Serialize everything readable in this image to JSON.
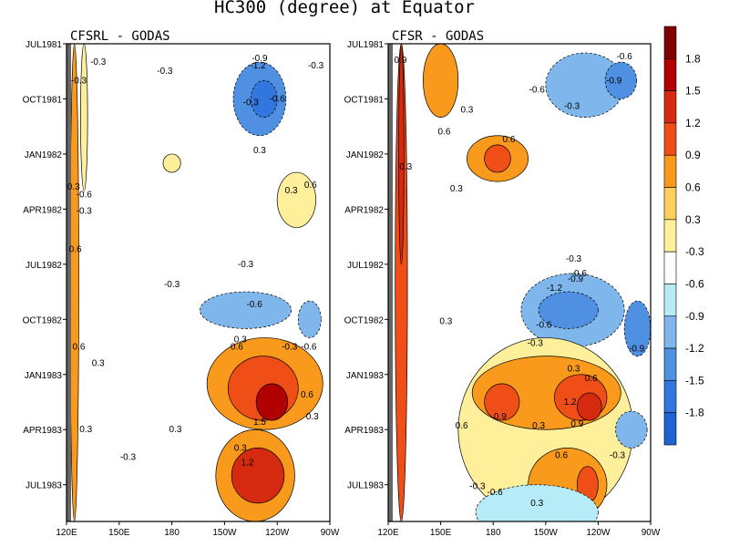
{
  "chart_data": {
    "type": "heatmap",
    "title": "HC300 (degree) at Equator",
    "panels": [
      {
        "title": "CFSRL - GODAS",
        "xlim": [
          120,
          270
        ],
        "y_start": "JUL1981",
        "y_end": "SEP1983",
        "regions": [
          {
            "lon": [
              122,
              127
            ],
            "t": [
              0,
              26
            ],
            "value": 0.6
          },
          {
            "lon": [
              128,
              132
            ],
            "t": [
              0,
              8
            ],
            "value": 0.4
          },
          {
            "lon": [
              215,
              245
            ],
            "t": [
              1,
              5
            ],
            "value": -0.9
          },
          {
            "lon": [
              225,
              240
            ],
            "t": [
              2,
              4
            ],
            "value": -1.2
          },
          {
            "lon": [
              175,
              185
            ],
            "t": [
              6,
              7
            ],
            "value": 0.3
          },
          {
            "lon": [
              240,
              262
            ],
            "t": [
              7,
              10
            ],
            "value": 0.3
          },
          {
            "lon": [
              196,
              248
            ],
            "t": [
              13.5,
              15.5
            ],
            "value": -0.6
          },
          {
            "lon": [
              252,
              265
            ],
            "t": [
              14,
              16
            ],
            "value": -0.6
          },
          {
            "lon": [
              200,
              266
            ],
            "t": [
              16,
              21
            ],
            "value": 0.6
          },
          {
            "lon": [
              212,
              252
            ],
            "t": [
              17,
              20.5
            ],
            "value": 0.9
          },
          {
            "lon": [
              228,
              246
            ],
            "t": [
              18.5,
              20.5
            ],
            "value": 1.5
          },
          {
            "lon": [
              205,
              250
            ],
            "t": [
              21,
              26
            ],
            "value": 0.6
          },
          {
            "lon": [
              214,
              244
            ],
            "t": [
              22,
              25
            ],
            "value": 1.2
          }
        ],
        "labels": [
          {
            "text": "-0.3",
            "lon": 138,
            "t": 1.0
          },
          {
            "text": "-0.3",
            "lon": 127,
            "t": 2.0
          },
          {
            "text": "-0.3",
            "lon": 176,
            "t": 1.5
          },
          {
            "text": "-0.9",
            "lon": 230,
            "t": 0.8
          },
          {
            "text": "-1.2",
            "lon": 229,
            "t": 1.2
          },
          {
            "text": "-0.3",
            "lon": 262,
            "t": 1.2
          },
          {
            "text": "-0.3",
            "lon": 225,
            "t": 3.2
          },
          {
            "text": "-0.6",
            "lon": 240,
            "t": 3.0
          },
          {
            "text": "0.3",
            "lon": 230,
            "t": 5.8
          },
          {
            "text": "0.3",
            "lon": 248,
            "t": 8.0
          },
          {
            "text": "0.6",
            "lon": 259,
            "t": 7.7
          },
          {
            "text": "0.3",
            "lon": 124,
            "t": 7.8
          },
          {
            "text": "-0.6",
            "lon": 130,
            "t": 8.2
          },
          {
            "text": "-0.3",
            "lon": 130,
            "t": 9.1
          },
          {
            "text": "0.6",
            "lon": 125,
            "t": 11.2
          },
          {
            "text": "-0.3",
            "lon": 222,
            "t": 12.0
          },
          {
            "text": "-0.3",
            "lon": 180,
            "t": 13.1
          },
          {
            "text": "-0.6",
            "lon": 227,
            "t": 14.2
          },
          {
            "text": "0.6",
            "lon": 127,
            "t": 16.5
          },
          {
            "text": "0.3",
            "lon": 138,
            "t": 17.4
          },
          {
            "text": "0.3",
            "lon": 219,
            "t": 16.1
          },
          {
            "text": "0.6",
            "lon": 217,
            "t": 16.5
          },
          {
            "text": "-0.3",
            "lon": 247,
            "t": 16.5
          },
          {
            "text": "-0.6",
            "lon": 258,
            "t": 16.5
          },
          {
            "text": "0.6",
            "lon": 257,
            "t": 19.1
          },
          {
            "text": "0.3",
            "lon": 260,
            "t": 20.3
          },
          {
            "text": "1.5",
            "lon": 230,
            "t": 20.6
          },
          {
            "text": "0.3",
            "lon": 131,
            "t": 21.0
          },
          {
            "text": "0.3",
            "lon": 182,
            "t": 21.0
          },
          {
            "text": "-0.3",
            "lon": 155,
            "t": 22.5
          },
          {
            "text": "0.3",
            "lon": 219,
            "t": 22.0
          },
          {
            "text": "1.2",
            "lon": 223,
            "t": 22.8
          },
          {
            "text": "0.6",
            "lon": 218,
            "t": 27.0
          }
        ]
      },
      {
        "title": "CFSR - GODAS",
        "xlim": [
          120,
          270
        ],
        "y_start": "JUL1981",
        "y_end": "SEP1983",
        "regions": [
          {
            "lon": [
              124,
              131
            ],
            "t": [
              0,
              26
            ],
            "value": 0.9
          },
          {
            "lon": [
              126,
              129
            ],
            "t": [
              0,
              12
            ],
            "value": 1.2
          },
          {
            "lon": [
              140,
              160
            ],
            "t": [
              0,
              4
            ],
            "value": 0.6
          },
          {
            "lon": [
              165,
              200
            ],
            "t": [
              5,
              7.5
            ],
            "value": 0.6
          },
          {
            "lon": [
              175,
              190
            ],
            "t": [
              5.5,
              7
            ],
            "value": 0.9
          },
          {
            "lon": [
              210,
              255
            ],
            "t": [
              0.5,
              4
            ],
            "value": -0.6
          },
          {
            "lon": [
              244,
              262
            ],
            "t": [
              1,
              3
            ],
            "value": -0.9
          },
          {
            "lon": [
              196,
              255
            ],
            "t": [
              12.5,
              16.5
            ],
            "value": -0.6
          },
          {
            "lon": [
              206,
              240
            ],
            "t": [
              13.5,
              15.5
            ],
            "value": -0.9
          },
          {
            "lon": [
              255,
              270
            ],
            "t": [
              14,
              17
            ],
            "value": -0.9
          },
          {
            "lon": [
              160,
              260
            ],
            "t": [
              16,
              26
            ],
            "value": 0.3
          },
          {
            "lon": [
              168,
              253
            ],
            "t": [
              17,
              21
            ],
            "value": 0.6
          },
          {
            "lon": [
              175,
              195
            ],
            "t": [
              18.5,
              20.5
            ],
            "value": 0.9
          },
          {
            "lon": [
              215,
              245
            ],
            "t": [
              18,
              20.5
            ],
            "value": 0.9
          },
          {
            "lon": [
              228,
              242
            ],
            "t": [
              19,
              20.5
            ],
            "value": 1.2
          },
          {
            "lon": [
              200,
              245
            ],
            "t": [
              22,
              26
            ],
            "value": 0.6
          },
          {
            "lon": [
              228,
              240
            ],
            "t": [
              23,
              25
            ],
            "value": 0.9
          },
          {
            "lon": [
              250,
              268
            ],
            "t": [
              20,
              22
            ],
            "value": -0.6
          },
          {
            "lon": [
              170,
              240
            ],
            "t": [
              24,
              27
            ],
            "value": -0.3
          }
        ],
        "labels": [
          {
            "text": "0.9",
            "lon": 127,
            "t": 0.9
          },
          {
            "text": "-0.6",
            "lon": 255,
            "t": 0.7
          },
          {
            "text": "-0.9",
            "lon": 249,
            "t": 2.0
          },
          {
            "text": "-0.6",
            "lon": 205,
            "t": 2.5
          },
          {
            "text": "-0.3",
            "lon": 225,
            "t": 3.4
          },
          {
            "text": "0.3",
            "lon": 165,
            "t": 3.6
          },
          {
            "text": "0.6",
            "lon": 152,
            "t": 4.8
          },
          {
            "text": "0.6",
            "lon": 189,
            "t": 5.2
          },
          {
            "text": "0.3",
            "lon": 130,
            "t": 6.7
          },
          {
            "text": "0.3",
            "lon": 159,
            "t": 7.9
          },
          {
            "text": "-0.3",
            "lon": 226,
            "t": 11.7
          },
          {
            "text": "-0.6",
            "lon": 229,
            "t": 12.5
          },
          {
            "text": "-0.9",
            "lon": 227,
            "t": 12.8
          },
          {
            "text": "-1.2",
            "lon": 215,
            "t": 13.3
          },
          {
            "text": "0.3",
            "lon": 153,
            "t": 15.1
          },
          {
            "text": "-0.6",
            "lon": 209,
            "t": 15.3
          },
          {
            "text": "-0.3",
            "lon": 204,
            "t": 16.3
          },
          {
            "text": "-0.9",
            "lon": 262,
            "t": 16.6
          },
          {
            "text": "0.3",
            "lon": 226,
            "t": 17.7
          },
          {
            "text": "0.6",
            "lon": 236,
            "t": 18.2
          },
          {
            "text": "1.2",
            "lon": 224,
            "t": 19.5
          },
          {
            "text": "0.9",
            "lon": 184,
            "t": 20.3
          },
          {
            "text": "0.9",
            "lon": 228,
            "t": 20.7
          },
          {
            "text": "0.6",
            "lon": 162,
            "t": 20.8
          },
          {
            "text": "0.3",
            "lon": 206,
            "t": 20.8
          },
          {
            "text": "0.6",
            "lon": 219,
            "t": 22.4
          },
          {
            "text": "-0.3",
            "lon": 251,
            "t": 22.4
          },
          {
            "text": "-0.3",
            "lon": 171,
            "t": 24.1
          },
          {
            "text": "-0.6",
            "lon": 181,
            "t": 24.4
          },
          {
            "text": "0.3",
            "lon": 205,
            "t": 25.0
          }
        ]
      }
    ],
    "y_ticks": [
      "JUL1981",
      "OCT1981",
      "JAN1982",
      "APR1982",
      "JUL1982",
      "OCT1982",
      "JAN1983",
      "APR1983",
      "JUL1983"
    ],
    "x_ticks": [
      "120E",
      "150E",
      "180",
      "150W",
      "120W",
      "90W"
    ],
    "colorbar": {
      "levels": [
        1.8,
        1.5,
        1.2,
        0.9,
        0.6,
        0.3,
        -0.3,
        -0.6,
        -0.9,
        -1.2,
        -1.5,
        -1.8
      ],
      "colors": [
        "#7f0000",
        "#b00000",
        "#d62a10",
        "#ef4f16",
        "#fa9a1c",
        "#fdcf5e",
        "#fef09a",
        "#ffffff",
        "#b6ecf7",
        "#7fb7ec",
        "#4f90e3",
        "#3277df",
        "#1f62d4"
      ]
    }
  }
}
